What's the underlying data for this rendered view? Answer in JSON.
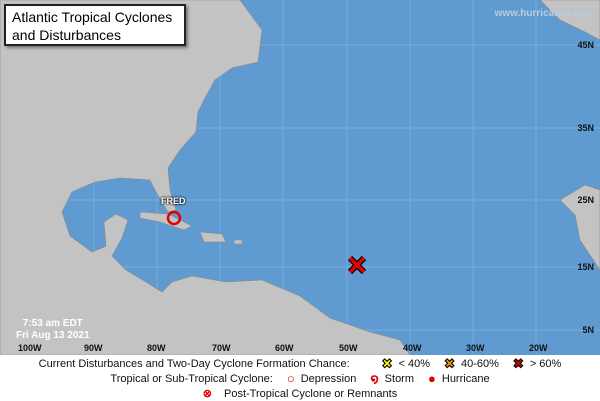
{
  "title": {
    "line1": "Atlantic Tropical Cyclones",
    "line2": "and Disturbances"
  },
  "watermark": "www.hurricanes.gov",
  "timestamp": {
    "time": "7:53 am EDT",
    "date": "Fri Aug 13 2021"
  },
  "latitude_labels": [
    "45N",
    "35N",
    "25N",
    "15N",
    "5N"
  ],
  "longitude_labels": [
    "100W",
    "90W",
    "80W",
    "70W",
    "60W",
    "50W",
    "40W",
    "30W",
    "20W"
  ],
  "storms": [
    {
      "name": "FRED",
      "type": "Depression",
      "color": "#e00000"
    }
  ],
  "disturbances": [
    {
      "chance": "> 60%",
      "color": "#e00000"
    }
  ],
  "legend": {
    "row1_label": "Current Disturbances and Two-Day Cyclone Formation Chance:",
    "low": "< 40%",
    "mid": "40-60%",
    "high": "> 60%",
    "low_color": "#ffff00",
    "mid_color": "#ff9900",
    "high_color": "#e00000",
    "row2_label": "Tropical or Sub-Tropical Cyclone:",
    "depression": "Depression",
    "storm": "Storm",
    "hurricane": "Hurricane",
    "row3_label": "Post-Tropical Cyclone or Remnants"
  },
  "colors": {
    "ocean": "#5f9bd0",
    "land": "#c3c3c3"
  }
}
